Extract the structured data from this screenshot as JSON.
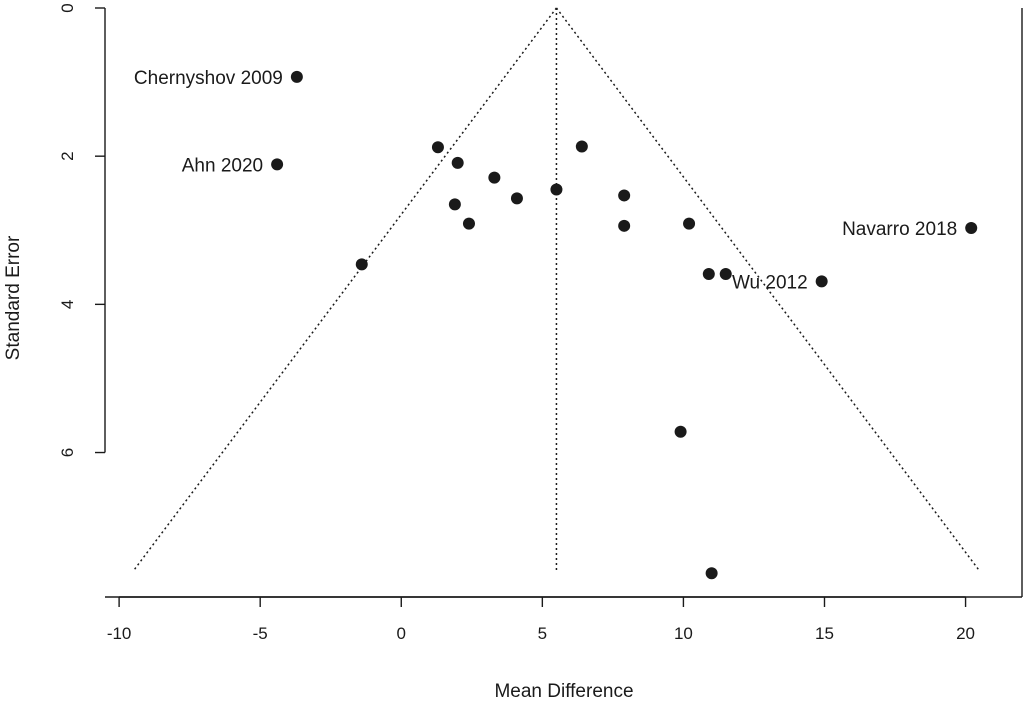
{
  "chart_data": {
    "type": "scatter",
    "subtype": "funnel",
    "title": "",
    "xlabel": "Mean Difference",
    "ylabel": "Standard Error",
    "xlim": [
      -10.5,
      22
    ],
    "ylim": [
      0,
      7.95
    ],
    "y_inverted": true,
    "x_ticks": [
      -10,
      -5,
      0,
      5,
      10,
      15,
      20
    ],
    "x_tick_labels": [
      "-10",
      "-5",
      "0",
      "5",
      "10",
      "15",
      "20"
    ],
    "y_ticks": [
      0,
      2,
      4,
      6
    ],
    "y_tick_labels": [
      "0",
      "2",
      "4",
      "6"
    ],
    "grid": false,
    "legend": "none",
    "funnel": {
      "center": 5.5,
      "se_max": 7.6,
      "left_base": -9.5,
      "right_base": 20.5,
      "line_style": "dotted"
    },
    "points": [
      {
        "x": -3.7,
        "y": 0.93,
        "label": "Chernyshov 2009"
      },
      {
        "x": -4.4,
        "y": 2.11,
        "label": "Ahn  2020"
      },
      {
        "x": 20.2,
        "y": 2.97,
        "label": "Navarro 2018"
      },
      {
        "x": 14.9,
        "y": 3.69,
        "label": "Wu 2012"
      },
      {
        "x": 1.3,
        "y": 1.88
      },
      {
        "x": 2.0,
        "y": 2.09
      },
      {
        "x": 6.4,
        "y": 1.87
      },
      {
        "x": 3.3,
        "y": 2.29
      },
      {
        "x": 5.5,
        "y": 2.45
      },
      {
        "x": 4.1,
        "y": 2.57
      },
      {
        "x": 7.9,
        "y": 2.53
      },
      {
        "x": 1.9,
        "y": 2.65
      },
      {
        "x": 2.4,
        "y": 2.91
      },
      {
        "x": 7.9,
        "y": 2.94
      },
      {
        "x": 10.2,
        "y": 2.91
      },
      {
        "x": -1.4,
        "y": 3.46
      },
      {
        "x": 10.9,
        "y": 3.59
      },
      {
        "x": 11.5,
        "y": 3.59
      },
      {
        "x": 9.9,
        "y": 5.72
      },
      {
        "x": 11.0,
        "y": 7.63
      }
    ],
    "colors": {
      "points": "#1a1a1a",
      "axes": "#1a1a1a",
      "funnel_lines": "#1a1a1a",
      "background": "#ffffff"
    }
  }
}
